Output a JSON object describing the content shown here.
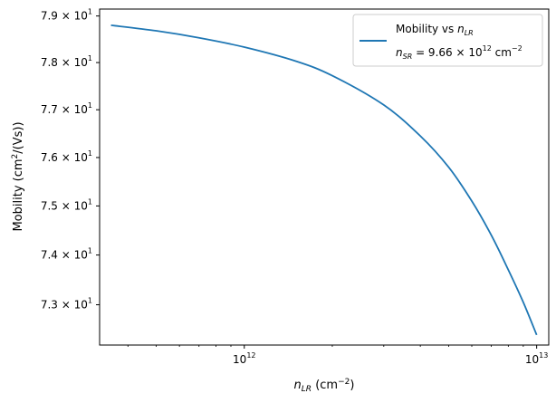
{
  "chart_data": {
    "type": "line",
    "title": "",
    "xlabel": {
      "base": "n",
      "sub": "LR",
      "unit_pre": " (cm",
      "unit_sup": "−2",
      "unit_post": ")"
    },
    "ylabel": {
      "pre": "Mobility  (cm",
      "sup": "2",
      "post": "/(Vs))"
    },
    "xscale": "log",
    "yscale": "log",
    "xlim": [
      320000000000.0,
      11000000000000.0
    ],
    "ylim": [
      72.2,
      79.15
    ],
    "xticks": [
      {
        "value": 1000000000000.0,
        "base": "10",
        "exp": "12"
      },
      {
        "value": 10000000000000.0,
        "base": "10",
        "exp": "13"
      }
    ],
    "yticks": [
      {
        "value": 73,
        "mant": "7.3 × 10",
        "exp": "1"
      },
      {
        "value": 74,
        "mant": "7.4 × 10",
        "exp": "1"
      },
      {
        "value": 75,
        "mant": "7.5 × 10",
        "exp": "1"
      },
      {
        "value": 76,
        "mant": "7.6 × 10",
        "exp": "1"
      },
      {
        "value": 77,
        "mant": "7.7 × 10",
        "exp": "1"
      },
      {
        "value": 78,
        "mant": "7.8 × 10",
        "exp": "1"
      },
      {
        "value": 79,
        "mant": "7.9 × 10",
        "exp": "1"
      }
    ],
    "grid": false,
    "legend_position": "top-right",
    "series": [
      {
        "name": "Mobility vs n_LR",
        "color": "#1f77b4",
        "x": [
          350000000000.0,
          500000000000.0,
          700000000000.0,
          1000000000000.0,
          1500000000000.0,
          2000000000000.0,
          3000000000000.0,
          4000000000000.0,
          5000000000000.0,
          6000000000000.0,
          7000000000000.0,
          8000000000000.0,
          9000000000000.0,
          10000000000000.0
        ],
        "y": [
          78.8,
          78.68,
          78.53,
          78.33,
          78.03,
          77.72,
          77.1,
          76.45,
          75.8,
          75.1,
          74.4,
          73.7,
          73.05,
          72.4
        ]
      }
    ],
    "legend": {
      "line1": {
        "pre": "Mobility vs ",
        "var": "n",
        "sub": "LR"
      },
      "line2": {
        "var": "n",
        "sub": "SR",
        "eq": " = 9.66 × 10",
        "exp": "12",
        "unit": " cm",
        "unit_exp": "−2"
      }
    }
  }
}
